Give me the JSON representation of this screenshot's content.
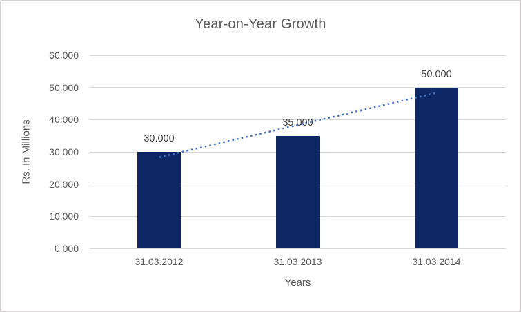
{
  "chart_data": {
    "type": "bar",
    "title": "Year-on-Year Growth",
    "xlabel": "Years",
    "ylabel": "Rs. In Millions",
    "categories": [
      "31.03.2012",
      "31.03.2013",
      "31.03.2014"
    ],
    "values": [
      30,
      35,
      50
    ],
    "data_labels": [
      "30.000",
      "35.000",
      "50.000"
    ],
    "y_ticks": [
      {
        "value": 0,
        "label": "0.000"
      },
      {
        "value": 10,
        "label": "10.000"
      },
      {
        "value": 20,
        "label": "20.000"
      },
      {
        "value": 30,
        "label": "30.000"
      },
      {
        "value": 40,
        "label": "40.000"
      },
      {
        "value": 50,
        "label": "50.000"
      },
      {
        "value": 60,
        "label": "60.000"
      }
    ],
    "ylim": [
      0,
      60
    ],
    "grid": true,
    "legend": "none",
    "bar_color": "#0d2765",
    "trendline": {
      "type": "linear",
      "style": "dotted",
      "color": "#4472c4",
      "start": {
        "category_index": 0,
        "value": 28.33
      },
      "end": {
        "category_index": 2,
        "value": 48.33
      }
    },
    "colors": {
      "grid": "#d9d9d9",
      "axis_text": "#595959",
      "title_text": "#595959",
      "data_label_text": "#444444",
      "border": "#d2d0d0",
      "background": "#ffffff"
    }
  }
}
